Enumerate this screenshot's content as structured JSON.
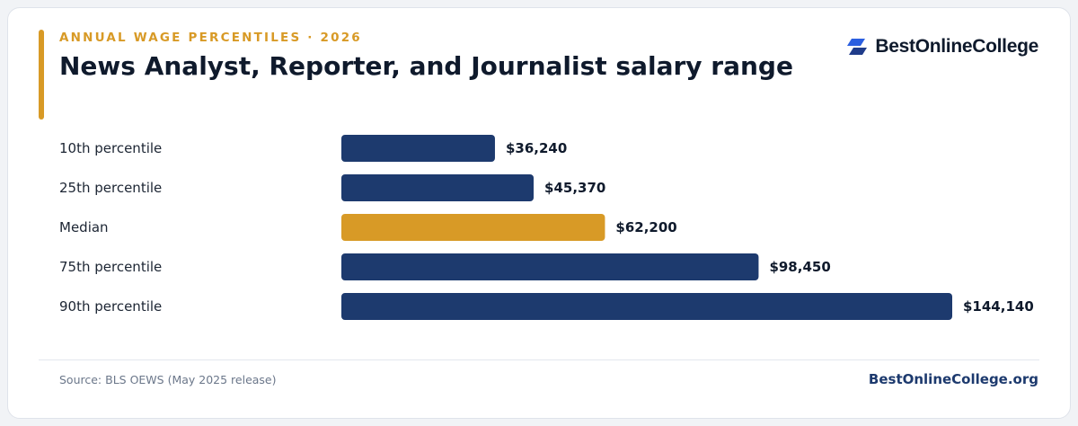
{
  "header": {
    "eyebrow": "ANNUAL WAGE PERCENTILES · 2026",
    "title": "News Analyst, Reporter, and Journalist salary range"
  },
  "brand": {
    "logo_text": "BestOnlineCollege",
    "logo_icon": "parallelogram-logo-icon",
    "site": "BestOnlineCollege.org"
  },
  "footer": {
    "source": "Source: BLS OEWS (May 2025 release)"
  },
  "colors": {
    "accent": "#d89a26",
    "bar": "#1d3a6e",
    "highlight": "#d89a26"
  },
  "chart_data": {
    "type": "bar",
    "orientation": "horizontal",
    "title": "",
    "categories": [
      "10th percentile",
      "25th percentile",
      "Median",
      "75th percentile",
      "90th percentile"
    ],
    "values": [
      36240,
      45370,
      62200,
      98450,
      144140
    ],
    "value_labels": [
      "$36,240",
      "$45,370",
      "$62,200",
      "$98,450",
      "$144,140"
    ],
    "highlight": "Median",
    "xlabel": "",
    "ylabel": "",
    "xlim": [
      0,
      144140
    ],
    "grid": false,
    "legend": "none"
  }
}
